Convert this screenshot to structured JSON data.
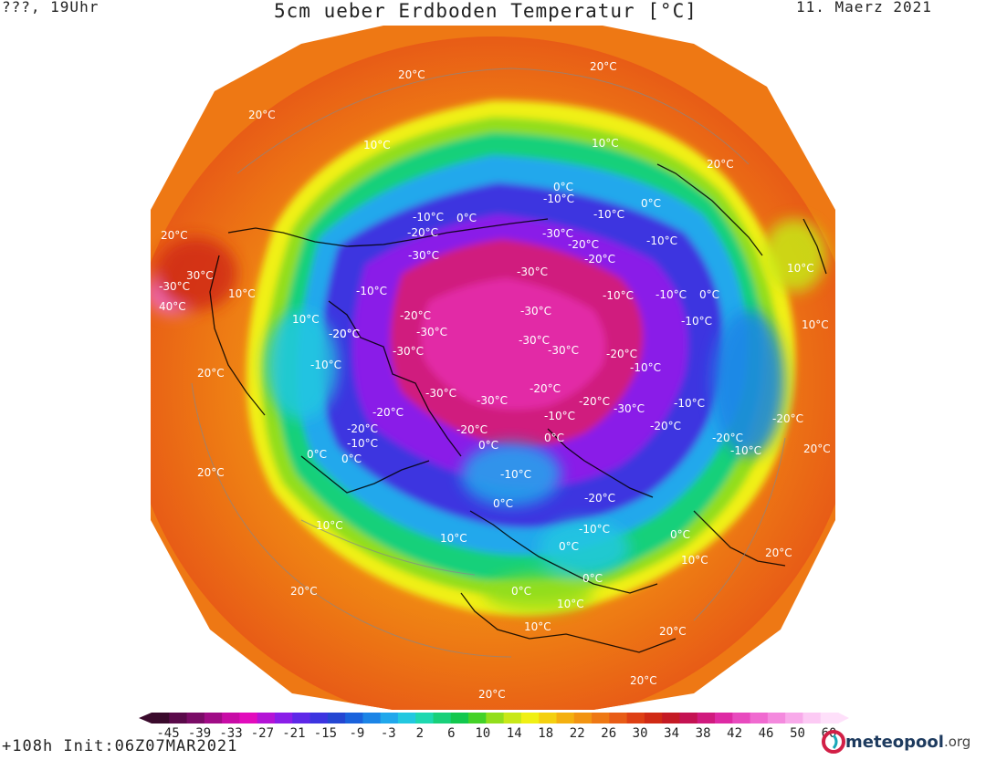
{
  "header": {
    "left": "???, 19Uhr",
    "title": "5cm ueber Erdboden Temperatur [°C]",
    "date": "11. Maerz 2021"
  },
  "footer": {
    "run_info": "+108h Init:06Z07MAR2021",
    "brand_main": "meteopool",
    "brand_tld": ".org"
  },
  "colorbar": {
    "tick_labels": [
      "-45",
      "-39",
      "-33",
      "-27",
      "-21",
      "-15",
      "-9",
      "-3",
      "2",
      "6",
      "10",
      "14",
      "18",
      "22",
      "26",
      "30",
      "34",
      "38",
      "42",
      "46",
      "50",
      "60"
    ],
    "colors": [
      "#3a0a2c",
      "#5a0a4a",
      "#7a0c66",
      "#a00c86",
      "#c80ca6",
      "#e20cbc",
      "#b414d6",
      "#8a1ee8",
      "#5e28e8",
      "#3c34e0",
      "#2446d2",
      "#1a62dc",
      "#1c84e6",
      "#20a8ec",
      "#22c8e0",
      "#1ed8b0",
      "#18d07a",
      "#12c84e",
      "#44d228",
      "#92de1c",
      "#c8e818",
      "#f0f014",
      "#f4d010",
      "#f4b010",
      "#f29412",
      "#ee7814",
      "#e85c16",
      "#de4014",
      "#d02a14",
      "#c41a24",
      "#c41252",
      "#d01a7e",
      "#de2aa4",
      "#e84abe",
      "#f06ad0",
      "#f48ade",
      "#f8aaea",
      "#fccaf4",
      "#fee0fa"
    ]
  },
  "contour_labels": [
    {
      "text": "20°C"
    },
    {
      "text": "20°C"
    },
    {
      "text": "20°C"
    },
    {
      "text": "10°C"
    },
    {
      "text": "10°C"
    },
    {
      "text": "20°C"
    },
    {
      "text": "0°C"
    },
    {
      "text": "-10°C"
    },
    {
      "text": "-10°C"
    },
    {
      "text": "0°C"
    },
    {
      "text": "-20°C"
    },
    {
      "text": "-30°C"
    },
    {
      "text": "-30°C"
    },
    {
      "text": "-30°C"
    },
    {
      "text": "-20°C"
    },
    {
      "text": "-20°C"
    },
    {
      "text": "0°C"
    },
    {
      "text": "-10°C"
    },
    {
      "text": "-10°C"
    },
    {
      "text": "-10°C"
    },
    {
      "text": "-30°C"
    },
    {
      "text": "-20°C"
    },
    {
      "text": "-30°C"
    },
    {
      "text": "-20°C"
    },
    {
      "text": "-30°C"
    },
    {
      "text": "-20°C"
    },
    {
      "text": "-10°C"
    },
    {
      "text": "-10°C"
    },
    {
      "text": "-30°C"
    },
    {
      "text": "-10°C"
    },
    {
      "text": "-20°C"
    },
    {
      "text": "-30°C"
    },
    {
      "text": "-20°C"
    },
    {
      "text": "-10°C"
    },
    {
      "text": "-20°C"
    },
    {
      "text": "-20°C"
    },
    {
      "text": "-10°C"
    },
    {
      "text": "-10°C"
    },
    {
      "text": "-30°C"
    },
    {
      "text": "-20°C"
    },
    {
      "text": "-30°C"
    },
    {
      "text": "0°C"
    },
    {
      "text": "-20°C"
    },
    {
      "text": "0°C"
    },
    {
      "text": "-10°C"
    },
    {
      "text": "0°C"
    },
    {
      "text": "-20°C"
    },
    {
      "text": "-10°C"
    },
    {
      "text": "0°C"
    },
    {
      "text": "0°C"
    },
    {
      "text": "-10°C"
    },
    {
      "text": "0°C"
    },
    {
      "text": "0°C"
    },
    {
      "text": "0°C"
    },
    {
      "text": "20°C"
    },
    {
      "text": "20°C"
    },
    {
      "text": "10°C"
    },
    {
      "text": "10°C"
    },
    {
      "text": "20°C"
    },
    {
      "text": "10°C"
    },
    {
      "text": "10°C"
    },
    {
      "text": "0°C"
    },
    {
      "text": "10°C"
    },
    {
      "text": "20°C"
    },
    {
      "text": "20°C"
    },
    {
      "text": "10°C"
    },
    {
      "text": "10°C"
    },
    {
      "text": "20°C"
    },
    {
      "text": "20°C"
    },
    {
      "text": "-30°C"
    },
    {
      "text": "40°C"
    },
    {
      "text": "20°C"
    },
    {
      "text": "30°C"
    },
    {
      "text": "10°C"
    },
    {
      "text": "20°C"
    },
    {
      "text": "-20°C"
    },
    {
      "text": "-30°C"
    },
    {
      "text": "-10°C"
    },
    {
      "text": "-20°C"
    },
    {
      "text": "-10°C"
    },
    {
      "text": "-20°C"
    },
    {
      "text": "0°C"
    },
    {
      "text": "10°C"
    }
  ]
}
